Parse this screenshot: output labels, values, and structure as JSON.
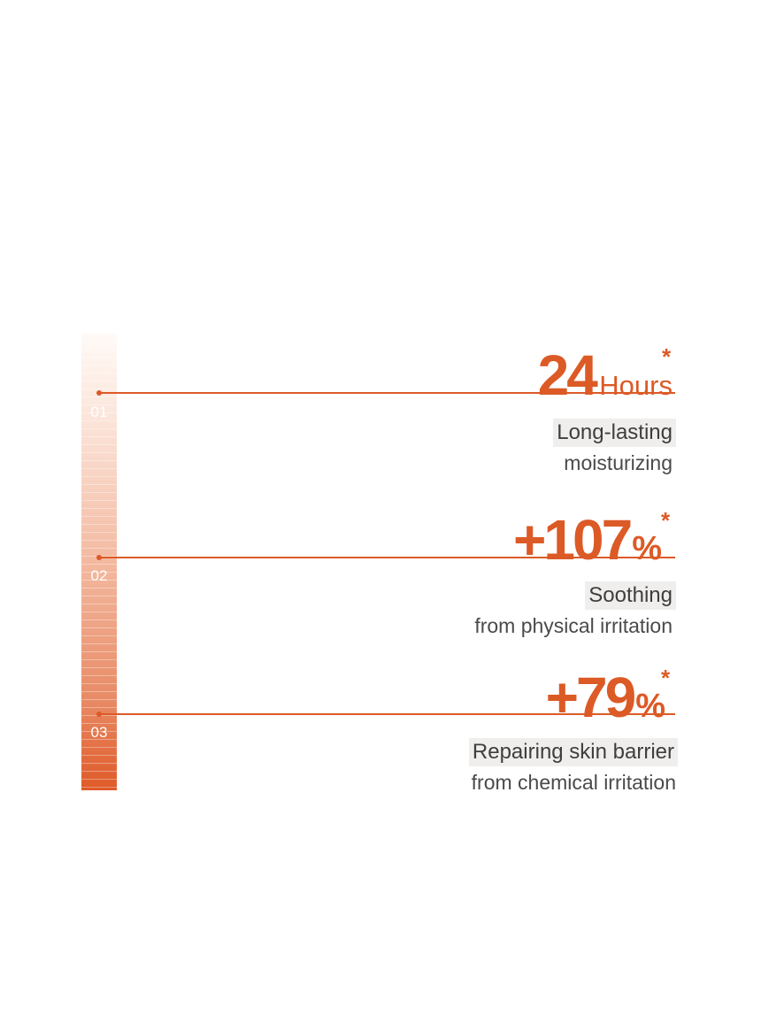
{
  "accent_color": "#dc5a26",
  "items": [
    {
      "number": "01",
      "value": "24",
      "unit": "Hours",
      "asterisk": "*",
      "title": "Long-lasting",
      "subtitle": "moisturizing"
    },
    {
      "number": "02",
      "value": "+107",
      "unit": "%",
      "asterisk": "*",
      "title": "Soothing",
      "subtitle": "from physical irritation"
    },
    {
      "number": "03",
      "value": "+79",
      "unit": "%",
      "asterisk": "*",
      "title": "Repairing skin barrier",
      "subtitle": "from chemical irritation"
    }
  ]
}
